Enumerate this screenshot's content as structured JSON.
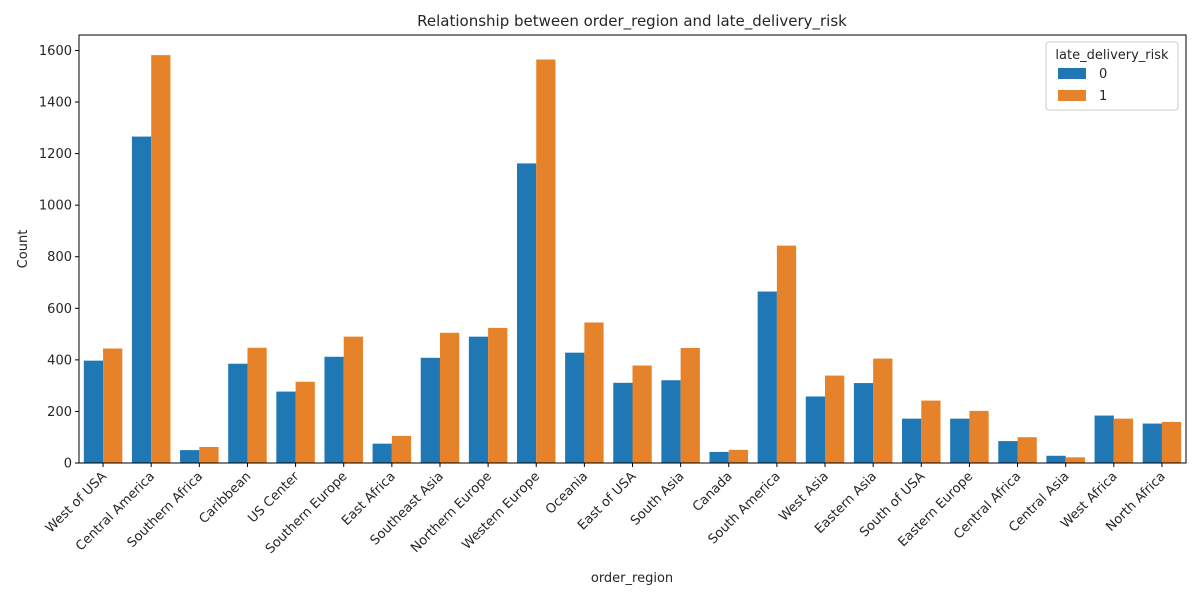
{
  "chart_data": {
    "type": "bar",
    "title": "Relationship between order_region and late_delivery_risk",
    "xlabel": "order_region",
    "ylabel": "Count",
    "ylim": [
      0,
      1660
    ],
    "yticks": [
      0,
      200,
      400,
      600,
      800,
      1000,
      1200,
      1400,
      1600
    ],
    "grid": false,
    "legend": {
      "title": "late_delivery_risk",
      "placement": "top-right"
    },
    "categories": [
      "West of USA",
      "Central America",
      "Southern Africa",
      "Caribbean",
      "US Center",
      "Southern Europe",
      "East Africa",
      "Southeast Asia",
      "Northern Europe",
      "Western Europe",
      "Oceania",
      "East of USA",
      "South Asia",
      "Canada",
      "South America",
      "West Asia",
      "Eastern Asia",
      "South of  USA",
      "Eastern Europe",
      "Central Africa",
      "Central Asia",
      "West Africa",
      "North Africa"
    ],
    "series": [
      {
        "name": "0",
        "color": "#1f77b4",
        "values": [
          397,
          1266,
          50,
          385,
          277,
          412,
          75,
          408,
          490,
          1162,
          428,
          311,
          321,
          43,
          665,
          258,
          310,
          172,
          172,
          85,
          28,
          184,
          153
        ]
      },
      {
        "name": "1",
        "color": "#e6822a",
        "values": [
          444,
          1582,
          62,
          447,
          315,
          490,
          105,
          505,
          524,
          1565,
          545,
          378,
          446,
          51,
          843,
          339,
          405,
          242,
          202,
          100,
          22,
          172,
          159
        ]
      }
    ]
  }
}
